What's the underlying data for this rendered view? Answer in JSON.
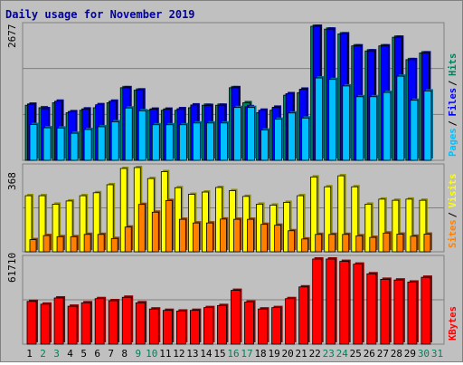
{
  "title": "Daily usage for November 2019",
  "colors": {
    "background": "#c0c0c0",
    "title": "#0000a0",
    "hits": "#00805c",
    "files": "#0000ff",
    "pages": "#00c0ff",
    "visits": "#ffff00",
    "sites": "#ff8000",
    "kbytes": "#ff0000",
    "weekend_label": "#00805c",
    "weekday_label": "#000000"
  },
  "chart_data": {
    "type": "bar",
    "title": "Daily usage for November 2019",
    "categories": [
      "1",
      "2",
      "3",
      "4",
      "5",
      "6",
      "7",
      "8",
      "9",
      "10",
      "11",
      "12",
      "13",
      "14",
      "15",
      "16",
      "17",
      "18",
      "19",
      "20",
      "21",
      "22",
      "23",
      "24",
      "25",
      "26",
      "27",
      "28",
      "29",
      "30",
      "31"
    ],
    "weekend_days": [
      "2",
      "3",
      "9",
      "10",
      "16",
      "17",
      "23",
      "24",
      "30",
      "31"
    ],
    "panels": [
      {
        "name": "hits-files-pages",
        "ymax": 2677,
        "ymax_label": "2677",
        "legend": [
          {
            "label": "Hits",
            "color_key": "hits"
          },
          {
            "label": "Files",
            "color_key": "files"
          },
          {
            "label": "Pages",
            "color_key": "pages"
          }
        ],
        "series": [
          {
            "name": "Hits",
            "color_key": "hits",
            "values": [
              1100,
              1050,
              1150,
              950,
              1000,
              1050,
              1150,
              1450,
              1400,
              1000,
              1000,
              1000,
              1050,
              1100,
              1100,
              1450,
              1150,
              950,
              1000,
              1300,
              1350,
              2677,
              2620,
              2525,
              2285,
              2185,
              2285,
              2458,
              2010,
              2145,
              null
            ]
          },
          {
            "name": "Files",
            "color_key": "files",
            "values": [
              1120,
              1030,
              1180,
              970,
              1025,
              1110,
              1180,
              1450,
              1405,
              1020,
              1020,
              1030,
              1105,
              1095,
              1100,
              1450,
              1070,
              1000,
              1060,
              1330,
              1420,
              2677,
              2620,
              2525,
              2285,
              2185,
              2285,
              2458,
              2010,
              2145,
              null
            ]
          },
          {
            "name": "Pages",
            "color_key": "pages",
            "values": [
              715,
              650,
              645,
              540,
              615,
              670,
              770,
              1045,
              990,
              710,
              710,
              710,
              745,
              745,
              745,
              1055,
              1055,
              605,
              820,
              945,
              845,
              1645,
              1615,
              1485,
              1270,
              1270,
              1355,
              1680,
              1200,
              1385,
              null
            ]
          }
        ]
      },
      {
        "name": "visits-sites",
        "ymax": 368,
        "ymax_label": "368",
        "legend": [
          {
            "label": "Visits",
            "color_key": "visits"
          },
          {
            "label": "Sites",
            "color_key": "sites"
          }
        ],
        "series": [
          {
            "name": "Visits",
            "color_key": "visits",
            "values": [
              245,
              245,
              208,
              222,
              245,
              258,
              293,
              364,
              368,
              320,
              350,
              280,
              251,
              261,
              281,
              267,
              242,
              208,
              204,
              216,
              245,
              327,
              284,
              332,
              284,
              208,
              230,
              225,
              230,
              225,
              null
            ]
          },
          {
            "name": "Sites",
            "color_key": "sites",
            "values": [
              53,
              71,
              66,
              66,
              76,
              76,
              58,
              108,
              207,
              173,
              224,
              142,
              126,
              126,
              143,
              142,
              142,
              120,
              116,
              92,
              56,
              76,
              76,
              76,
              70,
              63,
              82,
              77,
              68,
              77,
              null
            ]
          }
        ]
      },
      {
        "name": "kbytes",
        "ymax": 61710,
        "ymax_label": "61710",
        "legend": [
          {
            "label": "KBytes",
            "color_key": "kbytes"
          }
        ],
        "series": [
          {
            "name": "KBytes",
            "color_key": "kbytes",
            "values": [
              31000,
              29000,
              33500,
              27500,
              30000,
              33000,
              31500,
              34000,
              30000,
              25500,
              24500,
              24000,
              24500,
              26500,
              28000,
              39000,
              30500,
              25500,
              26500,
              33000,
              41500,
              61710,
              61710,
              60000,
              58000,
              51000,
              47000,
              46500,
              45000,
              48500,
              null
            ]
          }
        ]
      }
    ]
  }
}
